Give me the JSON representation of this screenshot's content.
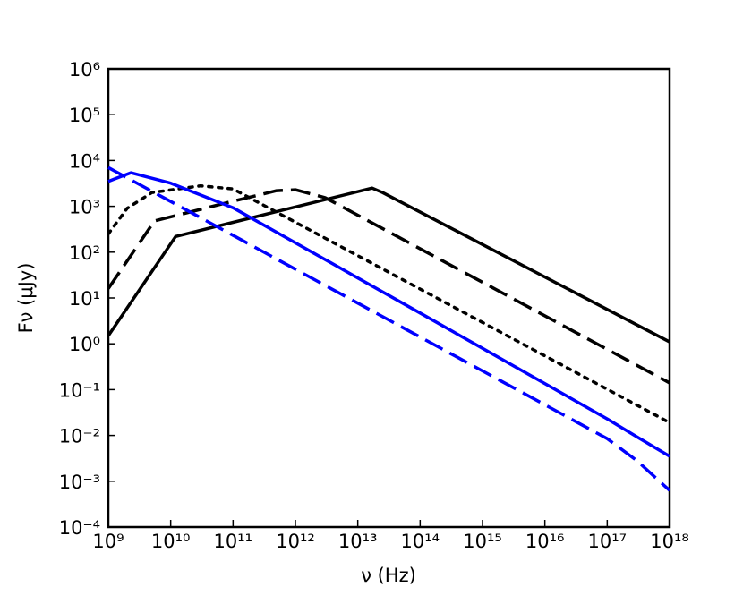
{
  "chart_data": {
    "type": "line",
    "xlabel": "ν (Hz)",
    "ylabel": "Fν (μJy)",
    "xscale": "log",
    "yscale": "log",
    "xlim": [
      1000000000.0,
      1e+18
    ],
    "ylim": [
      0.0001,
      1000000.0
    ],
    "xticks": [
      {
        "value": 1000000000.0,
        "label": "10⁹"
      },
      {
        "value": 10000000000.0,
        "label": "10¹⁰"
      },
      {
        "value": 100000000000.0,
        "label": "10¹¹"
      },
      {
        "value": 1000000000000.0,
        "label": "10¹²"
      },
      {
        "value": 10000000000000.0,
        "label": "10¹³"
      },
      {
        "value": 100000000000000.0,
        "label": "10¹⁴"
      },
      {
        "value": 1000000000000000.0,
        "label": "10¹⁵"
      },
      {
        "value": 1e+16,
        "label": "10¹⁶"
      },
      {
        "value": 1e+17,
        "label": "10¹⁷"
      },
      {
        "value": 1e+18,
        "label": "10¹⁸"
      }
    ],
    "yticks": [
      {
        "value": 0.0001,
        "label": "10⁻⁴"
      },
      {
        "value": 0.001,
        "label": "10⁻³"
      },
      {
        "value": 0.01,
        "label": "10⁻²"
      },
      {
        "value": 0.1,
        "label": "10⁻¹"
      },
      {
        "value": 1,
        "label": "10⁰"
      },
      {
        "value": 10,
        "label": "10¹"
      },
      {
        "value": 100,
        "label": "10²"
      },
      {
        "value": 1000,
        "label": "10³"
      },
      {
        "value": 10000,
        "label": "10⁴"
      },
      {
        "value": 100000,
        "label": "10⁵"
      },
      {
        "value": 1000000,
        "label": "10⁶"
      }
    ],
    "series": [
      {
        "color": "#000000",
        "linestyle": "solid",
        "x": [
          1000000000.0,
          12000000000.0,
          17000000000000.0,
          25000000000000.0,
          1e+18
        ],
        "values": [
          1.5,
          220,
          2500,
          2000,
          1.1
        ]
      },
      {
        "color": "#000000",
        "linestyle": "dashed",
        "x": [
          1000000000.0,
          5500000000.0,
          100000000000.0,
          500000000000.0,
          1000000000000.0,
          3000000000000.0,
          1e+18
        ],
        "values": [
          16,
          480,
          1290,
          2200,
          2300,
          1550,
          0.14
        ]
      },
      {
        "color": "#000000",
        "linestyle": "dotted",
        "x": [
          1000000000.0,
          2000000000.0,
          5000000000.0,
          30000000000.0,
          100000000000.0,
          1e+18
        ],
        "values": [
          250,
          900,
          2000,
          2800,
          2400,
          0.019
        ]
      },
      {
        "color": "#0000ff",
        "linestyle": "solid",
        "x": [
          1000000000.0,
          2300000000.0,
          10000000000.0,
          100000000000.0,
          100000000000000.0,
          1e+17,
          3e+17,
          1e+18
        ],
        "values": [
          3500,
          5400,
          3200,
          930,
          4.7,
          0.023,
          0.0093,
          0.0035
        ]
      },
      {
        "color": "#0000ff",
        "linestyle": "dashed",
        "x": [
          1000000000.0,
          1e+17,
          3e+17,
          1e+18
        ],
        "values": [
          7000,
          0.0085,
          0.0028,
          0.00063
        ]
      }
    ]
  }
}
